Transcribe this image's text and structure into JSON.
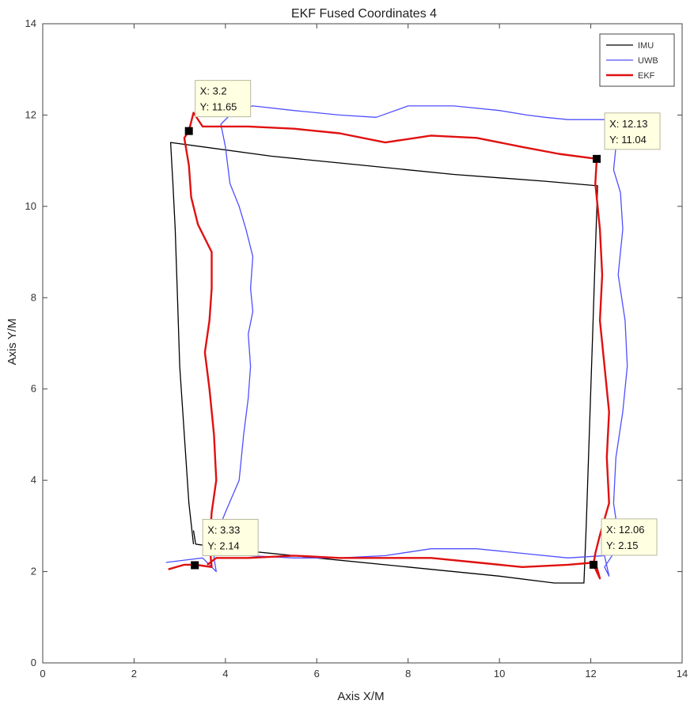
{
  "chart_data": {
    "type": "line",
    "title": "EKF Fused Coordinates 4",
    "xlabel": "Axis X/M",
    "ylabel": "Axis Y/M",
    "xlim": [
      0,
      14
    ],
    "ylim": [
      0,
      14
    ],
    "xticks": [
      0,
      2,
      4,
      6,
      8,
      10,
      12,
      14
    ],
    "yticks": [
      0,
      2,
      4,
      6,
      8,
      10,
      12,
      14
    ],
    "grid": false,
    "legend_position": "top-right",
    "series": [
      {
        "name": "IMU",
        "color": "#000000",
        "points": [
          [
            3.3,
            2.6
          ],
          [
            3.2,
            3.5
          ],
          [
            3.1,
            5.0
          ],
          [
            3.0,
            6.5
          ],
          [
            2.95,
            8.0
          ],
          [
            2.9,
            9.5
          ],
          [
            2.85,
            10.5
          ],
          [
            2.8,
            11.4
          ],
          [
            5.0,
            11.1
          ],
          [
            7.0,
            10.9
          ],
          [
            9.0,
            10.7
          ],
          [
            11.0,
            10.55
          ],
          [
            12.15,
            10.45
          ],
          [
            12.1,
            9.0
          ],
          [
            12.05,
            7.5
          ],
          [
            12.0,
            6.0
          ],
          [
            11.95,
            4.5
          ],
          [
            11.9,
            3.0
          ],
          [
            11.85,
            1.75
          ],
          [
            11.2,
            1.75
          ],
          [
            10.0,
            1.9
          ],
          [
            8.0,
            2.1
          ],
          [
            6.0,
            2.3
          ],
          [
            4.5,
            2.45
          ],
          [
            3.35,
            2.6
          ],
          [
            3.3,
            2.9
          ]
        ]
      },
      {
        "name": "UWB",
        "color": "#4f4fff",
        "points": [
          [
            2.7,
            2.2
          ],
          [
            3.1,
            2.25
          ],
          [
            3.5,
            2.3
          ],
          [
            3.7,
            2.1
          ],
          [
            3.8,
            2.0
          ],
          [
            3.75,
            2.3
          ],
          [
            3.8,
            2.8
          ],
          [
            4.0,
            3.3
          ],
          [
            4.3,
            4.0
          ],
          [
            4.4,
            5.0
          ],
          [
            4.5,
            5.8
          ],
          [
            4.55,
            6.5
          ],
          [
            4.5,
            7.2
          ],
          [
            4.6,
            7.7
          ],
          [
            4.55,
            8.2
          ],
          [
            4.6,
            8.9
          ],
          [
            4.45,
            9.5
          ],
          [
            4.3,
            10.0
          ],
          [
            4.1,
            10.5
          ],
          [
            4.0,
            11.3
          ],
          [
            3.9,
            11.8
          ],
          [
            4.2,
            12.1
          ],
          [
            4.6,
            12.2
          ],
          [
            5.5,
            12.1
          ],
          [
            6.5,
            12.0
          ],
          [
            7.3,
            11.95
          ],
          [
            8.0,
            12.2
          ],
          [
            9.0,
            12.2
          ],
          [
            10.0,
            12.1
          ],
          [
            10.6,
            12.0
          ],
          [
            11.0,
            11.95
          ],
          [
            11.5,
            11.9
          ],
          [
            12.0,
            11.9
          ],
          [
            12.5,
            11.9
          ],
          [
            12.55,
            11.3
          ],
          [
            12.5,
            10.8
          ],
          [
            12.65,
            10.3
          ],
          [
            12.7,
            9.5
          ],
          [
            12.6,
            8.5
          ],
          [
            12.75,
            7.5
          ],
          [
            12.8,
            6.5
          ],
          [
            12.7,
            5.5
          ],
          [
            12.55,
            4.5
          ],
          [
            12.5,
            3.5
          ],
          [
            12.6,
            2.8
          ],
          [
            12.5,
            2.4
          ],
          [
            12.3,
            2.1
          ],
          [
            12.4,
            1.9
          ],
          [
            12.3,
            2.35
          ],
          [
            11.5,
            2.3
          ],
          [
            10.5,
            2.4
          ],
          [
            9.5,
            2.5
          ],
          [
            8.5,
            2.5
          ],
          [
            7.5,
            2.35
          ],
          [
            6.5,
            2.3
          ],
          [
            5.5,
            2.3
          ],
          [
            4.5,
            2.35
          ]
        ]
      },
      {
        "name": "EKF",
        "color": "#e01010",
        "points": [
          [
            2.75,
            2.05
          ],
          [
            3.1,
            2.15
          ],
          [
            3.35,
            2.15
          ],
          [
            3.7,
            2.1
          ],
          [
            3.65,
            2.6
          ],
          [
            3.7,
            3.3
          ],
          [
            3.8,
            4.0
          ],
          [
            3.75,
            5.0
          ],
          [
            3.65,
            6.0
          ],
          [
            3.55,
            6.8
          ],
          [
            3.65,
            7.5
          ],
          [
            3.7,
            8.2
          ],
          [
            3.7,
            9.0
          ],
          [
            3.4,
            9.6
          ],
          [
            3.25,
            10.2
          ],
          [
            3.2,
            10.9
          ],
          [
            3.1,
            11.5
          ],
          [
            3.2,
            11.65
          ],
          [
            3.3,
            12.05
          ],
          [
            3.5,
            11.75
          ],
          [
            4.5,
            11.75
          ],
          [
            5.5,
            11.7
          ],
          [
            6.5,
            11.6
          ],
          [
            7.5,
            11.4
          ],
          [
            8.5,
            11.55
          ],
          [
            9.5,
            11.5
          ],
          [
            10.5,
            11.3
          ],
          [
            11.3,
            11.15
          ],
          [
            12.13,
            11.04
          ],
          [
            12.1,
            10.5
          ],
          [
            12.2,
            9.5
          ],
          [
            12.25,
            8.5
          ],
          [
            12.2,
            7.5
          ],
          [
            12.3,
            6.5
          ],
          [
            12.4,
            5.5
          ],
          [
            12.35,
            4.5
          ],
          [
            12.4,
            3.5
          ],
          [
            12.2,
            2.8
          ],
          [
            12.1,
            2.4
          ],
          [
            12.06,
            2.15
          ],
          [
            12.2,
            1.85
          ],
          [
            12.1,
            2.2
          ],
          [
            11.5,
            2.15
          ],
          [
            10.5,
            2.1
          ],
          [
            9.5,
            2.2
          ],
          [
            8.5,
            2.3
          ],
          [
            7.5,
            2.3
          ],
          [
            6.5,
            2.3
          ],
          [
            5.5,
            2.35
          ],
          [
            4.5,
            2.3
          ],
          [
            3.8,
            2.3
          ],
          [
            3.6,
            2.15
          ]
        ]
      }
    ],
    "datatips": [
      {
        "x": 3.2,
        "y": 11.65,
        "x_text": "X: 3.2",
        "y_text": "Y: 11.65",
        "anchor": "top"
      },
      {
        "x": 12.13,
        "y": 11.04,
        "x_text": "X: 12.13",
        "y_text": "Y: 11.04",
        "anchor": "right"
      },
      {
        "x": 3.33,
        "y": 2.14,
        "x_text": "X: 3.33",
        "y_text": "Y: 2.14",
        "anchor": "right"
      },
      {
        "x": 12.06,
        "y": 2.15,
        "x_text": "X: 12.06",
        "y_text": "Y: 2.15",
        "anchor": "right"
      }
    ]
  }
}
